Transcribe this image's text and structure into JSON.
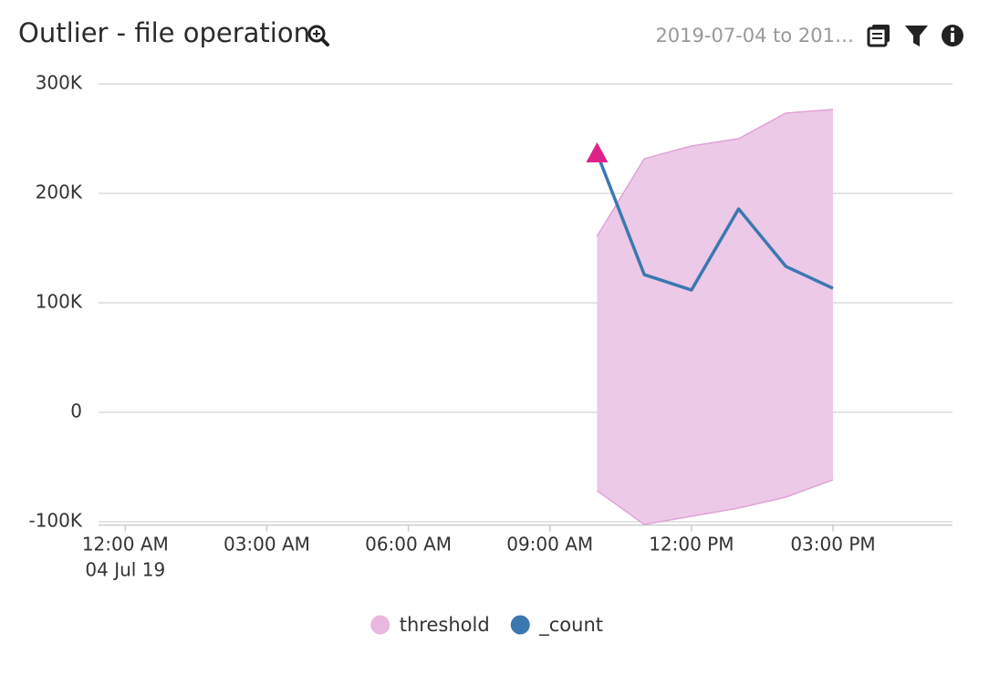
{
  "header": {
    "date_range": "2019-07-04 to 201…"
  },
  "chart_data": {
    "type": "line",
    "title": "Outlier - file operation",
    "x": [
      "2019-07-04T10:00",
      "2019-07-04T11:00",
      "2019-07-04T12:00",
      "2019-07-04T13:00",
      "2019-07-04T14:00",
      "2019-07-04T15:00"
    ],
    "xlim": [
      "2019-07-03T23:26",
      "2019-07-04T17:32"
    ],
    "xticks": [
      {
        "value": "2019-07-04T00:00",
        "label": "12:00 AM"
      },
      {
        "value": "2019-07-04T03:00",
        "label": "03:00 AM"
      },
      {
        "value": "2019-07-04T06:00",
        "label": "06:00 AM"
      },
      {
        "value": "2019-07-04T09:00",
        "label": "09:00 AM"
      },
      {
        "value": "2019-07-04T12:00",
        "label": "12:00 PM"
      },
      {
        "value": "2019-07-04T15:00",
        "label": "03:00 PM"
      }
    ],
    "x_date_label": "04 Jul 19",
    "ylim": [
      -103000,
      300000
    ],
    "yticks": [
      {
        "value": -100000,
        "label": "-100K"
      },
      0,
      {
        "value": 100000,
        "label": "100K"
      },
      {
        "value": 200000,
        "label": "200K"
      },
      {
        "value": 300000,
        "label": "300K"
      }
    ],
    "grid": true,
    "series": [
      {
        "name": "threshold",
        "type": "area",
        "color": "#e9b8df",
        "fill": "#ecc9e7",
        "stroke": "#dfa4d6",
        "upper": [
          160800,
          231700,
          243300,
          250000,
          273300,
          276700
        ],
        "lower": [
          -71700,
          -102500,
          -95000,
          -87500,
          -77500,
          -61700
        ]
      },
      {
        "name": "_count",
        "type": "line",
        "color": "#3b78b0",
        "values": [
          236700,
          125800,
          111700,
          185800,
          133300,
          113300
        ]
      }
    ],
    "outlier_color": "#e0218a"
  }
}
